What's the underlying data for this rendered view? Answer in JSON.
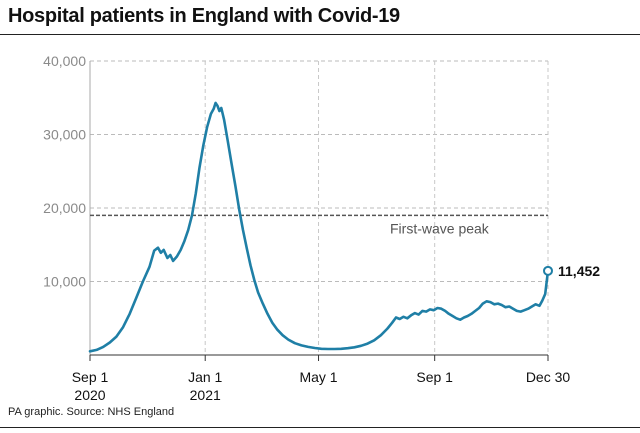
{
  "chart_data": {
    "type": "line",
    "title": "Hospital patients in England with Covid-19",
    "xlabel": "",
    "ylabel": "",
    "x_range": [
      "2020-09-01",
      "2021-12-30"
    ],
    "ylim": [
      0,
      40000
    ],
    "y_ticks": [
      10000,
      20000,
      30000,
      40000
    ],
    "y_tick_labels": [
      "10,000",
      "20,000",
      "30,000",
      "40,000"
    ],
    "x_ticks": [
      "2020-09-01",
      "2021-01-01",
      "2021-05-01",
      "2021-09-01",
      "2021-12-30"
    ],
    "x_tick_labels": [
      [
        "Sep 1",
        "2020"
      ],
      [
        "Jan 1",
        "2021"
      ],
      [
        "May 1",
        ""
      ],
      [
        "Sep 1",
        ""
      ],
      [
        "Dec 30",
        ""
      ]
    ],
    "grid": "horizontal dashed",
    "reference_line": {
      "label": "First-wave peak",
      "value": 19000
    },
    "end_label": "11,452",
    "series": [
      {
        "color": "#1f7fa6",
        "points": [
          [
            "2020-09-01",
            500
          ],
          [
            "2020-09-08",
            700
          ],
          [
            "2020-09-15",
            1100
          ],
          [
            "2020-09-22",
            1700
          ],
          [
            "2020-09-29",
            2500
          ],
          [
            "2020-10-06",
            3800
          ],
          [
            "2020-10-13",
            5600
          ],
          [
            "2020-10-20",
            7800
          ],
          [
            "2020-10-27",
            10000
          ],
          [
            "2020-11-03",
            12000
          ],
          [
            "2020-11-08",
            14200
          ],
          [
            "2020-11-12",
            14600
          ],
          [
            "2020-11-15",
            13900
          ],
          [
            "2020-11-18",
            14300
          ],
          [
            "2020-11-22",
            13200
          ],
          [
            "2020-11-25",
            13600
          ],
          [
            "2020-11-28",
            12800
          ],
          [
            "2020-12-02",
            13400
          ],
          [
            "2020-12-06",
            14300
          ],
          [
            "2020-12-10",
            15500
          ],
          [
            "2020-12-14",
            17000
          ],
          [
            "2020-12-18",
            19000
          ],
          [
            "2020-12-22",
            22000
          ],
          [
            "2020-12-26",
            25500
          ],
          [
            "2020-12-30",
            28500
          ],
          [
            "2021-01-03",
            31000
          ],
          [
            "2021-01-07",
            32800
          ],
          [
            "2021-01-10",
            33500
          ],
          [
            "2021-01-12",
            34300
          ],
          [
            "2021-01-14",
            33900
          ],
          [
            "2021-01-16",
            33200
          ],
          [
            "2021-01-18",
            33600
          ],
          [
            "2021-01-21",
            32000
          ],
          [
            "2021-01-25",
            29000
          ],
          [
            "2021-01-29",
            26000
          ],
          [
            "2021-02-02",
            23000
          ],
          [
            "2021-02-06",
            19800
          ],
          [
            "2021-02-10",
            17000
          ],
          [
            "2021-02-14",
            14500
          ],
          [
            "2021-02-18",
            12200
          ],
          [
            "2021-02-22",
            10200
          ],
          [
            "2021-02-26",
            8500
          ],
          [
            "2021-03-03",
            7000
          ],
          [
            "2021-03-08",
            5600
          ],
          [
            "2021-03-13",
            4400
          ],
          [
            "2021-03-18",
            3500
          ],
          [
            "2021-03-24",
            2700
          ],
          [
            "2021-03-30",
            2100
          ],
          [
            "2021-04-06",
            1600
          ],
          [
            "2021-04-13",
            1300
          ],
          [
            "2021-04-20",
            1100
          ],
          [
            "2021-04-27",
            950
          ],
          [
            "2021-05-04",
            850
          ],
          [
            "2021-05-11",
            820
          ],
          [
            "2021-05-18",
            820
          ],
          [
            "2021-05-25",
            850
          ],
          [
            "2021-06-01",
            920
          ],
          [
            "2021-06-08",
            1050
          ],
          [
            "2021-06-15",
            1250
          ],
          [
            "2021-06-22",
            1550
          ],
          [
            "2021-06-29",
            2000
          ],
          [
            "2021-07-06",
            2700
          ],
          [
            "2021-07-13",
            3600
          ],
          [
            "2021-07-18",
            4400
          ],
          [
            "2021-07-22",
            5100
          ],
          [
            "2021-07-26",
            4900
          ],
          [
            "2021-07-30",
            5200
          ],
          [
            "2021-08-03",
            5000
          ],
          [
            "2021-08-07",
            5400
          ],
          [
            "2021-08-11",
            5700
          ],
          [
            "2021-08-15",
            5500
          ],
          [
            "2021-08-19",
            6000
          ],
          [
            "2021-08-23",
            5900
          ],
          [
            "2021-08-27",
            6200
          ],
          [
            "2021-08-31",
            6100
          ],
          [
            "2021-09-04",
            6400
          ],
          [
            "2021-09-08",
            6300
          ],
          [
            "2021-09-12",
            6000
          ],
          [
            "2021-09-16",
            5600
          ],
          [
            "2021-09-20",
            5300
          ],
          [
            "2021-09-24",
            5000
          ],
          [
            "2021-09-28",
            4800
          ],
          [
            "2021-10-02",
            5100
          ],
          [
            "2021-10-06",
            5300
          ],
          [
            "2021-10-10",
            5600
          ],
          [
            "2021-10-14",
            6000
          ],
          [
            "2021-10-18",
            6400
          ],
          [
            "2021-10-22",
            7000
          ],
          [
            "2021-10-26",
            7300
          ],
          [
            "2021-10-30",
            7200
          ],
          [
            "2021-11-03",
            6900
          ],
          [
            "2021-11-07",
            7000
          ],
          [
            "2021-11-11",
            6800
          ],
          [
            "2021-11-15",
            6500
          ],
          [
            "2021-11-19",
            6600
          ],
          [
            "2021-11-23",
            6300
          ],
          [
            "2021-11-27",
            6000
          ],
          [
            "2021-12-01",
            5900
          ],
          [
            "2021-12-05",
            6100
          ],
          [
            "2021-12-09",
            6300
          ],
          [
            "2021-12-13",
            6600
          ],
          [
            "2021-12-17",
            6900
          ],
          [
            "2021-12-21",
            6700
          ],
          [
            "2021-12-24",
            7400
          ],
          [
            "2021-12-27",
            8300
          ],
          [
            "2021-12-30",
            11452
          ]
        ]
      }
    ]
  },
  "footer": {
    "source": "PA graphic. Source: NHS England"
  }
}
